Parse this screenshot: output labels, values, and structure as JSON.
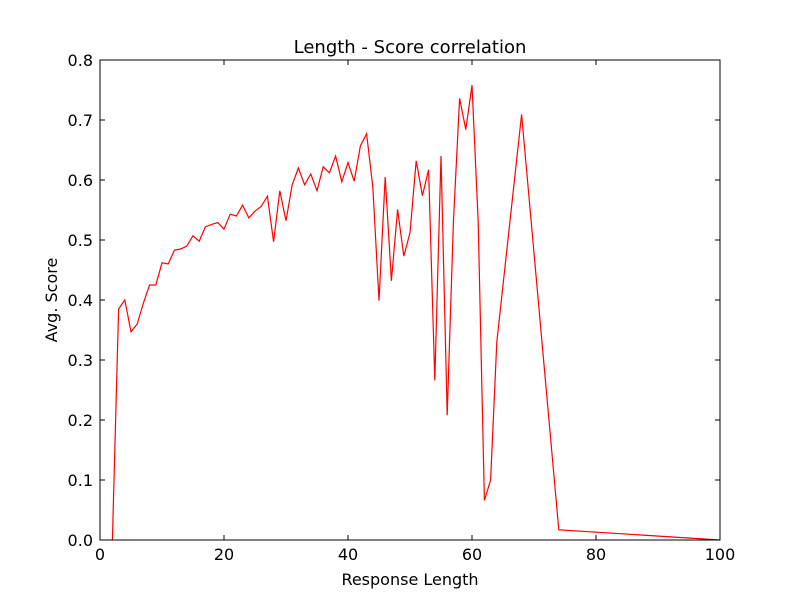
{
  "chart_data": {
    "type": "line",
    "title": "Length - Score correlation",
    "xlabel": "Response Length",
    "ylabel": "Avg. Score",
    "xlim": [
      0,
      100
    ],
    "ylim": [
      0.0,
      0.8
    ],
    "xticks": [
      0,
      20,
      40,
      60,
      80,
      100
    ],
    "xtick_labels": [
      "0",
      "20",
      "40",
      "60",
      "80",
      "100"
    ],
    "yticks": [
      0.0,
      0.1,
      0.2,
      0.3,
      0.4,
      0.5,
      0.6,
      0.7,
      0.8
    ],
    "ytick_labels": [
      "0.0",
      "0.1",
      "0.2",
      "0.3",
      "0.4",
      "0.5",
      "0.6",
      "0.7",
      "0.8"
    ],
    "grid": false,
    "series": [
      {
        "color": "#ff0000",
        "x": [
          2,
          3,
          4,
          5,
          6,
          7,
          8,
          9,
          10,
          11,
          12,
          13,
          14,
          15,
          16,
          17,
          18,
          19,
          20,
          21,
          22,
          23,
          24,
          25,
          26,
          27,
          28,
          29,
          30,
          31,
          32,
          33,
          34,
          35,
          36,
          37,
          38,
          39,
          40,
          41,
          42,
          43,
          44,
          45,
          46,
          47,
          48,
          49,
          50,
          51,
          52,
          53,
          54,
          55,
          56,
          57,
          58,
          59,
          60,
          61,
          62,
          63,
          64,
          68,
          74,
          100
        ],
        "y": [
          0.0,
          0.385,
          0.4,
          0.347,
          0.36,
          0.395,
          0.425,
          0.425,
          0.462,
          0.46,
          0.483,
          0.485,
          0.49,
          0.507,
          0.498,
          0.522,
          0.526,
          0.529,
          0.518,
          0.543,
          0.54,
          0.558,
          0.537,
          0.548,
          0.556,
          0.573,
          0.497,
          0.582,
          0.532,
          0.592,
          0.62,
          0.592,
          0.61,
          0.582,
          0.622,
          0.612,
          0.64,
          0.597,
          0.629,
          0.598,
          0.657,
          0.677,
          0.589,
          0.399,
          0.605,
          0.432,
          0.551,
          0.473,
          0.512,
          0.632,
          0.574,
          0.617,
          0.266,
          0.64,
          0.208,
          0.53,
          0.736,
          0.684,
          0.758,
          0.53,
          0.066,
          0.1,
          0.33,
          0.709,
          0.017,
          0.0
        ]
      }
    ]
  }
}
